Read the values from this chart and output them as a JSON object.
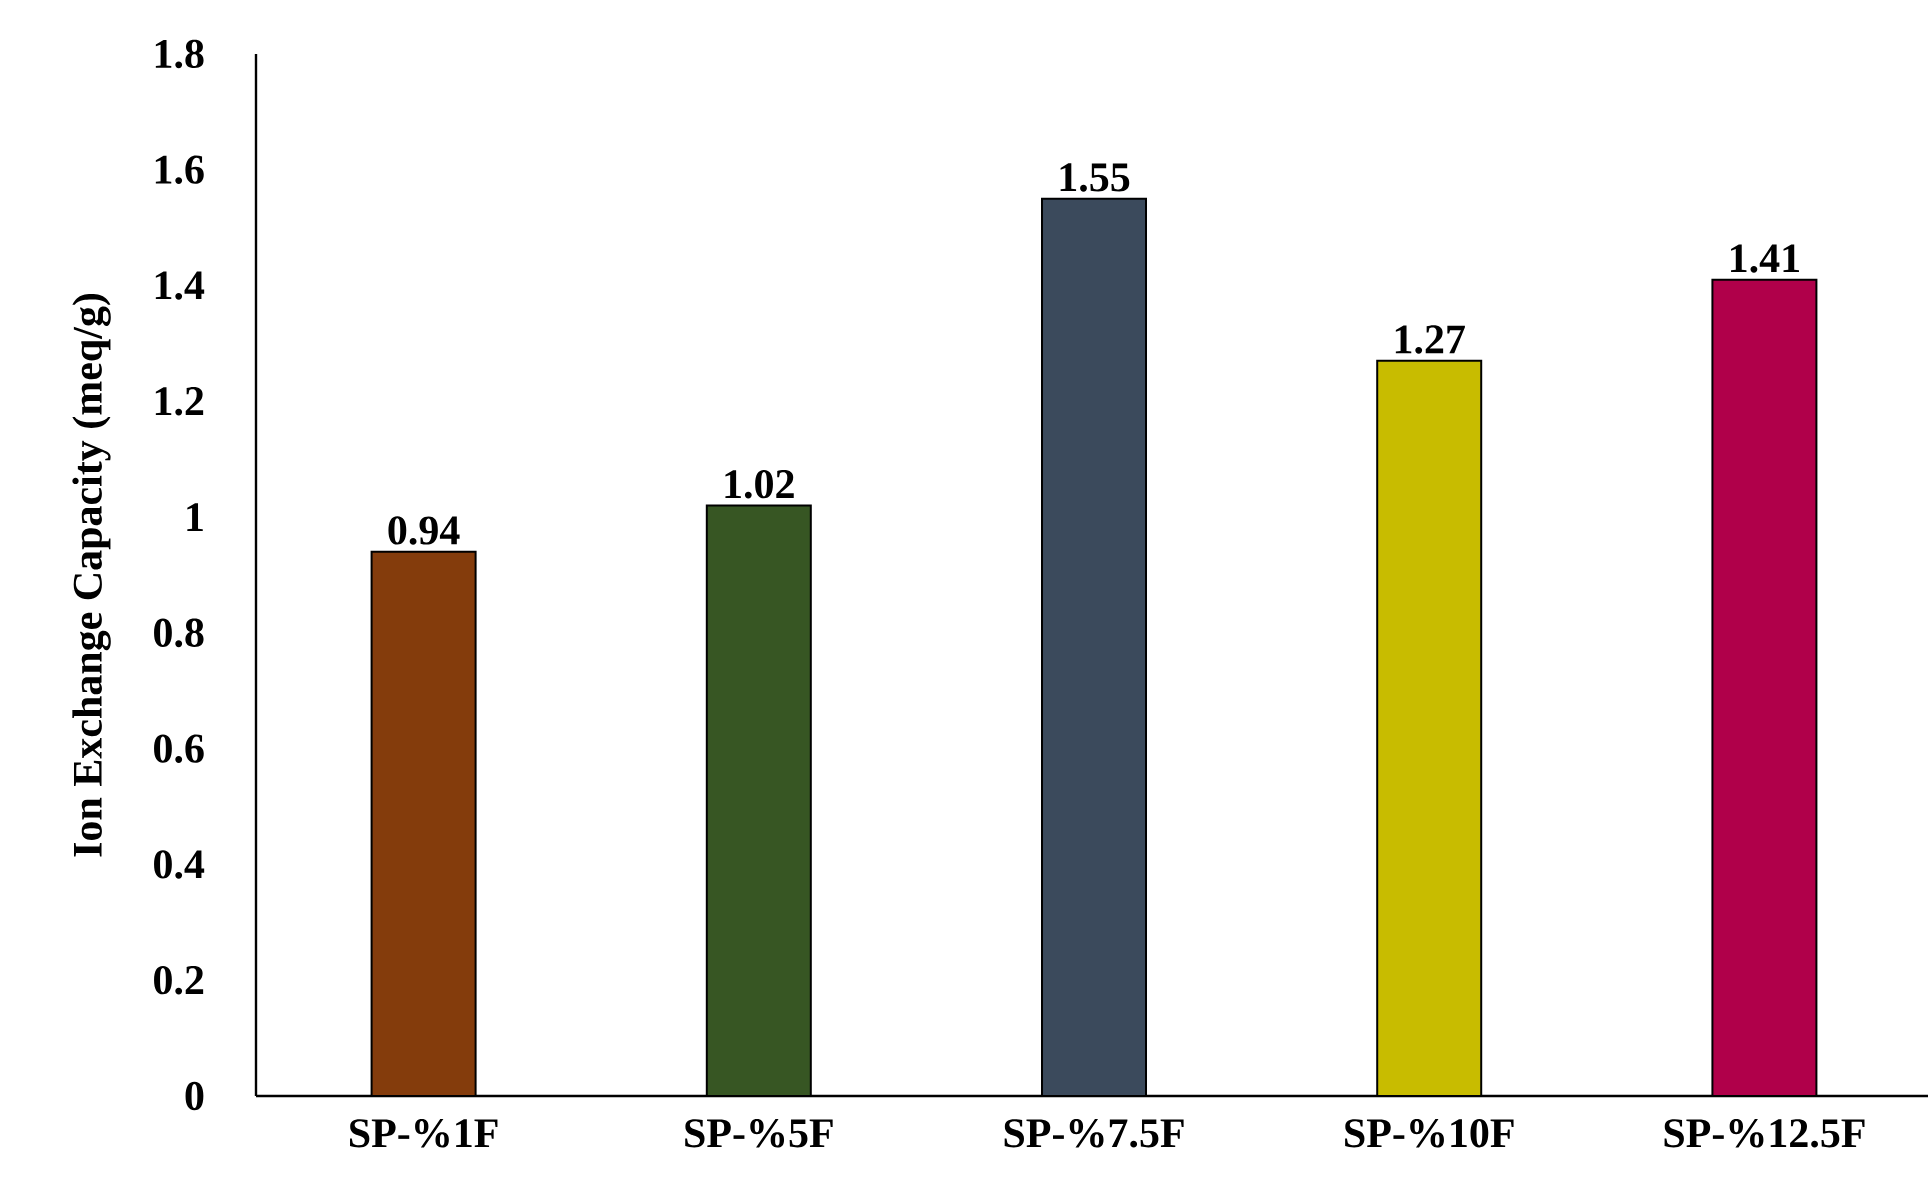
{
  "chart_data": {
    "type": "bar",
    "ylabel": "Ion Exchange Capacity  (meq/g)",
    "categories": [
      "SP-%1F",
      "SP-%5F",
      "SP-%7.5F",
      "SP-%10F",
      "SP-%12.5F"
    ],
    "values": [
      0.94,
      1.02,
      1.55,
      1.27,
      1.41
    ],
    "colors": [
      "#843c0c",
      "#375623",
      "#3b4a5c",
      "#c8bc00",
      "#b0004a"
    ],
    "ylim": [
      0,
      1.8
    ],
    "yticks": [
      0,
      0.2,
      0.4,
      0.6,
      0.8,
      1,
      1.2,
      1.4,
      1.6,
      1.8
    ],
    "data_labels": true
  }
}
